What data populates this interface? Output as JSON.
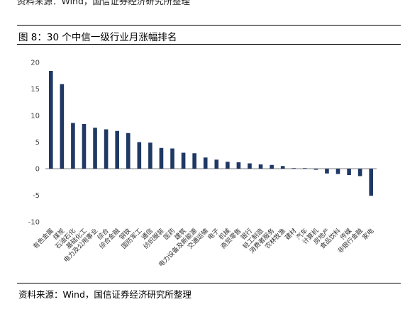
{
  "header": {
    "source_top": "资料来源：Wind，国信证券经济研究所整理",
    "figure_title": "图 8：30 个中信一级行业月涨幅排名"
  },
  "footer": {
    "source": "资料来源：Wind，国信证券经济研究所整理"
  },
  "colors": {
    "bar": "#1f3864",
    "axis": "#7f7f7f",
    "text": "#333333"
  },
  "chart_data": {
    "type": "bar",
    "title": "",
    "xlabel": "",
    "ylabel": "",
    "ylim": [
      -10,
      20
    ],
    "yticks": [
      -10,
      -5,
      0,
      5,
      10,
      15,
      20
    ],
    "grid": false,
    "categories": [
      "有色金属",
      "煤炭",
      "石油石化",
      "基础化工",
      "电力及公用事业",
      "综合",
      "综合金融",
      "钢铁",
      "国防军工",
      "通信",
      "纺织服装",
      "医药",
      "建筑",
      "电力设备及新能源",
      "交通运输",
      "电子",
      "机械",
      "商贸零售",
      "银行",
      "轻工制造",
      "消费者服务",
      "农林牧渔",
      "建材",
      "汽车",
      "计算机",
      "房地产",
      "食品饮料",
      "传媒",
      "非银行金融",
      "家电"
    ],
    "values": [
      18.4,
      15.9,
      8.6,
      8.4,
      7.7,
      7.4,
      7.1,
      6.7,
      5.0,
      4.9,
      3.9,
      3.8,
      3.0,
      2.9,
      2.1,
      1.7,
      1.3,
      1.2,
      1.0,
      0.8,
      0.7,
      0.5,
      0.1,
      0.1,
      -0.2,
      -0.9,
      -1.0,
      -1.2,
      -1.4,
      -5.1
    ]
  }
}
